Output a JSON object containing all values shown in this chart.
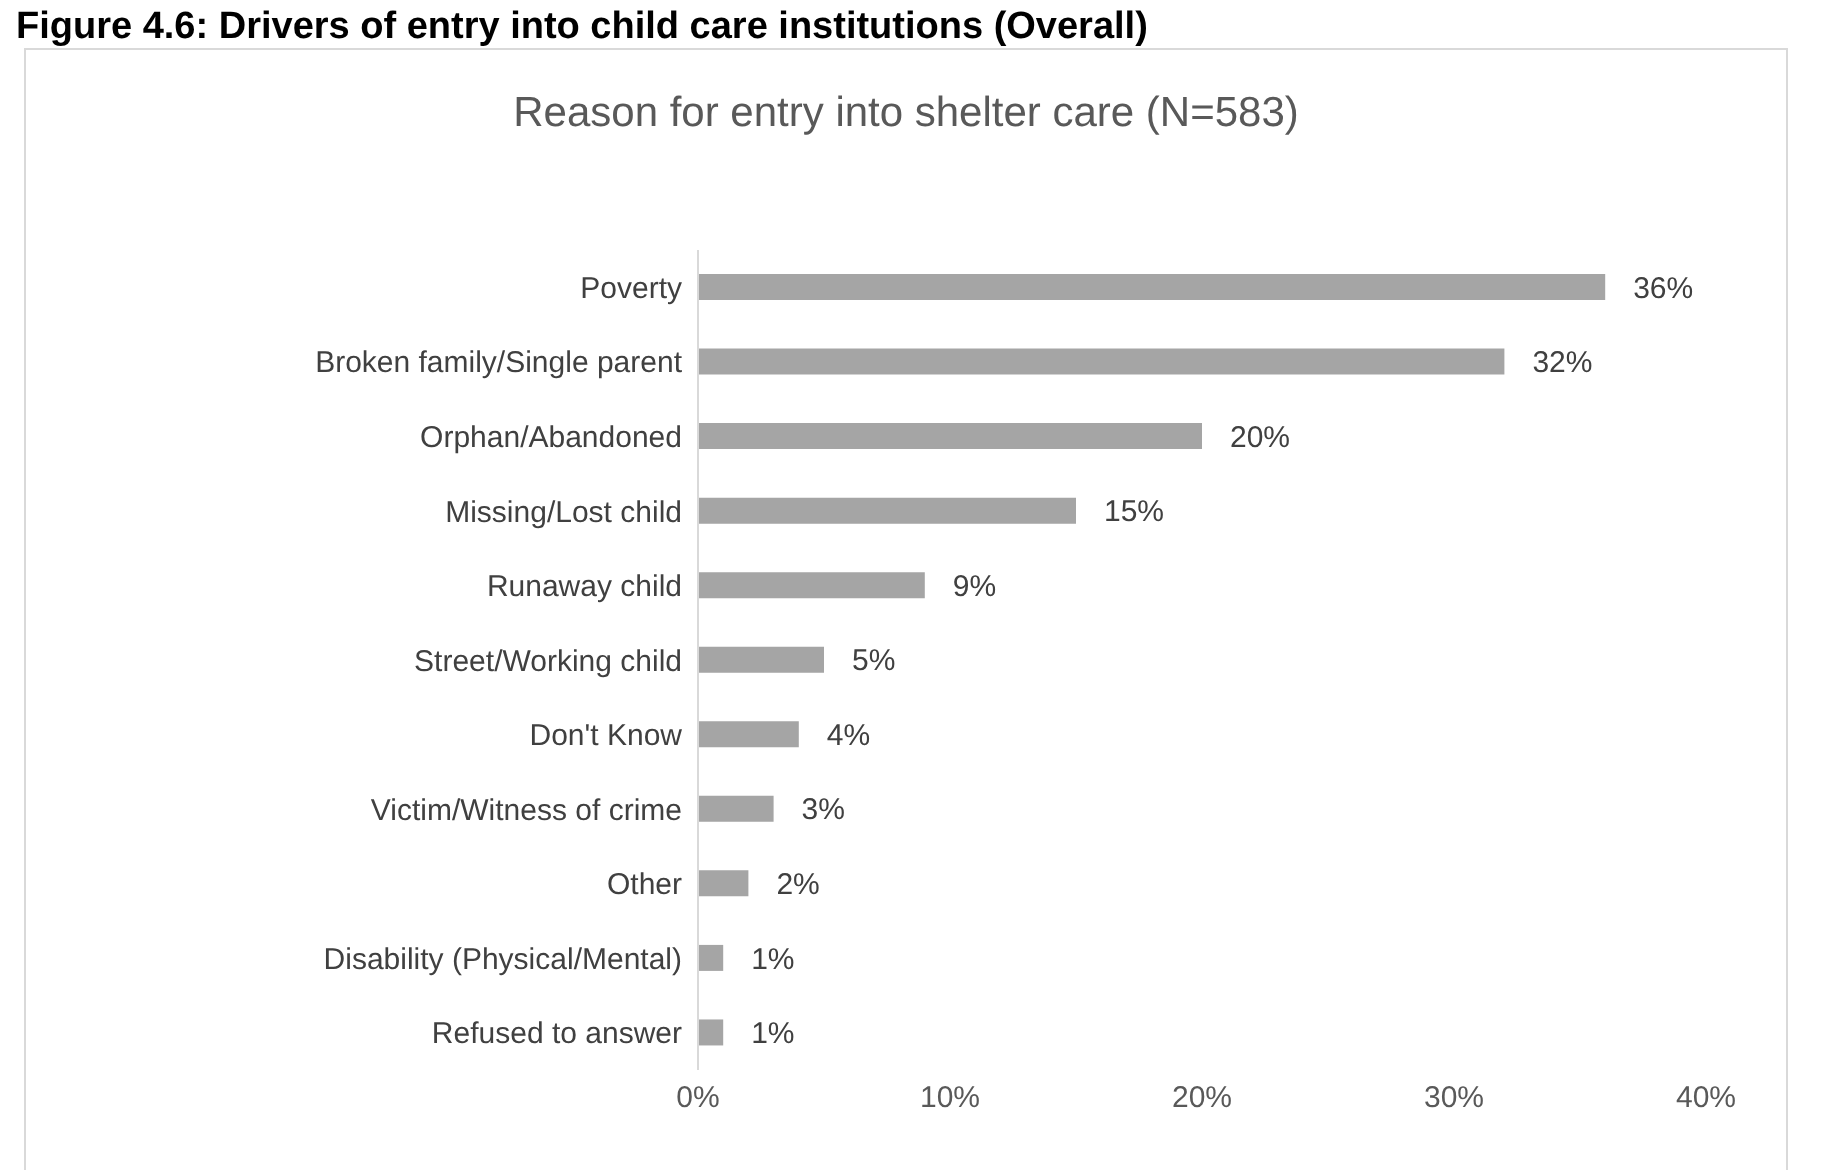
{
  "chart_data": {
    "type": "bar",
    "orientation": "horizontal",
    "title": "Figure 4.6: Drivers of entry into child care institutions (Overall)",
    "subtitle": "Reason  for entry into shelter care (N=583)",
    "categories": [
      "Poverty",
      "Broken family/Single parent",
      "Orphan/Abandoned",
      "Missing/Lost child",
      "Runaway child",
      "Street/Working child",
      "Don't Know",
      "Victim/Witness of crime",
      "Other",
      "Disability (Physical/Mental)",
      "Refused to answer"
    ],
    "values": [
      36,
      32,
      20,
      15,
      9,
      5,
      4,
      3,
      2,
      1,
      1
    ],
    "value_labels": [
      "36%",
      "32%",
      "20%",
      "15%",
      "9%",
      "5%",
      "4%",
      "3%",
      "2%",
      "1%",
      "1%"
    ],
    "color": "#a5a5a5",
    "xlim": [
      0,
      40
    ],
    "xticks": [
      {
        "value": 0,
        "label": "0%"
      },
      {
        "value": 10,
        "label": "10%"
      },
      {
        "value": 20,
        "label": "20%"
      },
      {
        "value": 30,
        "label": "30%"
      },
      {
        "value": 40,
        "label": "40%"
      }
    ],
    "grid": false
  }
}
